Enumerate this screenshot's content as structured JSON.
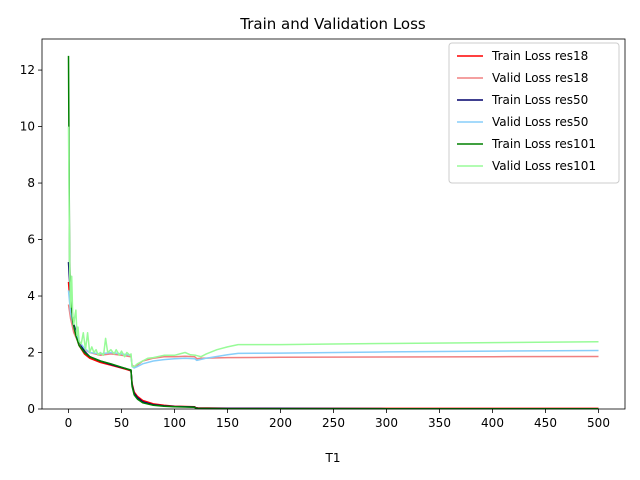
{
  "chart_data": {
    "type": "line",
    "title": "Train and Validation Loss",
    "xlabel": "T1",
    "ylabel": "",
    "xlim": [
      -25,
      525
    ],
    "ylim": [
      0,
      13.1
    ],
    "xticks": [
      0,
      50,
      100,
      150,
      200,
      250,
      300,
      350,
      400,
      450,
      500
    ],
    "yticks": [
      0,
      2,
      4,
      6,
      8,
      10,
      12
    ],
    "grid": false,
    "legend_position": "top-right",
    "series": [
      {
        "name": "Train Loss res18",
        "color": "#ff0000",
        "x": [
          0,
          2,
          5,
          10,
          15,
          20,
          30,
          40,
          50,
          55,
          59,
          60,
          62,
          65,
          70,
          80,
          90,
          100,
          110,
          119,
          120,
          122,
          150,
          200,
          300,
          400,
          500
        ],
        "y": [
          4.5,
          3.5,
          2.8,
          2.25,
          1.95,
          1.8,
          1.65,
          1.55,
          1.45,
          1.4,
          1.35,
          0.9,
          0.6,
          0.45,
          0.3,
          0.18,
          0.13,
          0.1,
          0.09,
          0.08,
          0.05,
          0.04,
          0.03,
          0.02,
          0.02,
          0.02,
          0.02
        ]
      },
      {
        "name": "Valid Loss res18",
        "color": "#f08080",
        "x": [
          0,
          2,
          5,
          10,
          15,
          20,
          30,
          40,
          50,
          59,
          60,
          62,
          65,
          70,
          80,
          90,
          100,
          110,
          119,
          121,
          125,
          150,
          200,
          300,
          400,
          500
        ],
        "y": [
          3.7,
          3.2,
          2.7,
          2.3,
          2.1,
          2.0,
          1.9,
          1.95,
          1.9,
          1.85,
          1.55,
          1.5,
          1.55,
          1.7,
          1.8,
          1.85,
          1.85,
          1.87,
          1.85,
          1.78,
          1.8,
          1.82,
          1.83,
          1.84,
          1.85,
          1.86
        ]
      },
      {
        "name": "Train Loss res50",
        "color": "#00006b",
        "x": [
          0,
          2,
          5,
          10,
          15,
          20,
          30,
          40,
          50,
          55,
          59,
          60,
          62,
          65,
          70,
          80,
          90,
          100,
          110,
          119,
          120,
          122,
          150,
          200,
          300,
          400,
          500
        ],
        "y": [
          5.2,
          3.9,
          3.0,
          2.4,
          2.05,
          1.85,
          1.7,
          1.58,
          1.47,
          1.42,
          1.37,
          0.85,
          0.55,
          0.4,
          0.25,
          0.15,
          0.11,
          0.09,
          0.08,
          0.07,
          0.04,
          0.03,
          0.02,
          0.02,
          0.01,
          0.01,
          0.01
        ]
      },
      {
        "name": "Valid Loss res50",
        "color": "#87cefa",
        "x": [
          0,
          2,
          5,
          10,
          15,
          20,
          30,
          40,
          50,
          59,
          60,
          62,
          65,
          70,
          80,
          90,
          100,
          110,
          119,
          121,
          130,
          150,
          160,
          200,
          300,
          400,
          500
        ],
        "y": [
          4.2,
          3.4,
          2.9,
          2.4,
          2.15,
          2.0,
          1.95,
          2.0,
          1.95,
          1.9,
          1.5,
          1.45,
          1.5,
          1.6,
          1.7,
          1.75,
          1.78,
          1.8,
          1.78,
          1.72,
          1.8,
          1.92,
          1.97,
          1.98,
          2.02,
          2.05,
          2.07
        ]
      },
      {
        "name": "Train Loss res101",
        "color": "#008000",
        "x": [
          0,
          1,
          2,
          4,
          7,
          10,
          15,
          20,
          30,
          40,
          50,
          55,
          59,
          60,
          62,
          65,
          70,
          80,
          90,
          100,
          110,
          119,
          120,
          122,
          150,
          200,
          300,
          400,
          500
        ],
        "y": [
          12.5,
          5.2,
          4.1,
          3.1,
          2.6,
          2.25,
          2.0,
          1.85,
          1.7,
          1.6,
          1.48,
          1.42,
          1.38,
          0.8,
          0.5,
          0.35,
          0.22,
          0.13,
          0.1,
          0.08,
          0.07,
          0.06,
          0.03,
          0.02,
          0.01,
          0.01,
          0.01,
          0.01,
          0.01
        ]
      },
      {
        "name": "Valid Loss res101",
        "color": "#98fb98",
        "x": [
          0,
          1,
          2,
          3,
          4,
          5,
          6,
          7,
          8,
          9,
          10,
          12,
          14,
          16,
          18,
          20,
          22,
          24,
          26,
          28,
          30,
          33,
          35,
          37,
          40,
          43,
          45,
          48,
          50,
          53,
          55,
          58,
          59,
          60,
          62,
          65,
          70,
          75,
          80,
          90,
          100,
          105,
          110,
          115,
          120,
          125,
          130,
          140,
          150,
          160,
          200,
          250,
          300,
          400,
          500
        ],
        "y": [
          10.0,
          5.0,
          3.6,
          4.7,
          3.3,
          3.0,
          3.3,
          3.5,
          2.6,
          2.9,
          2.4,
          2.3,
          2.7,
          2.1,
          2.7,
          2.0,
          2.2,
          2.0,
          2.1,
          1.9,
          2.0,
          1.9,
          2.5,
          2.0,
          2.1,
          1.95,
          2.1,
          1.9,
          2.05,
          1.85,
          2.0,
          1.9,
          1.95,
          1.5,
          1.5,
          1.6,
          1.7,
          1.8,
          1.82,
          1.9,
          1.9,
          1.95,
          2.0,
          1.92,
          1.9,
          1.85,
          1.95,
          2.1,
          2.2,
          2.28,
          2.28,
          2.3,
          2.32,
          2.35,
          2.38
        ]
      }
    ]
  }
}
